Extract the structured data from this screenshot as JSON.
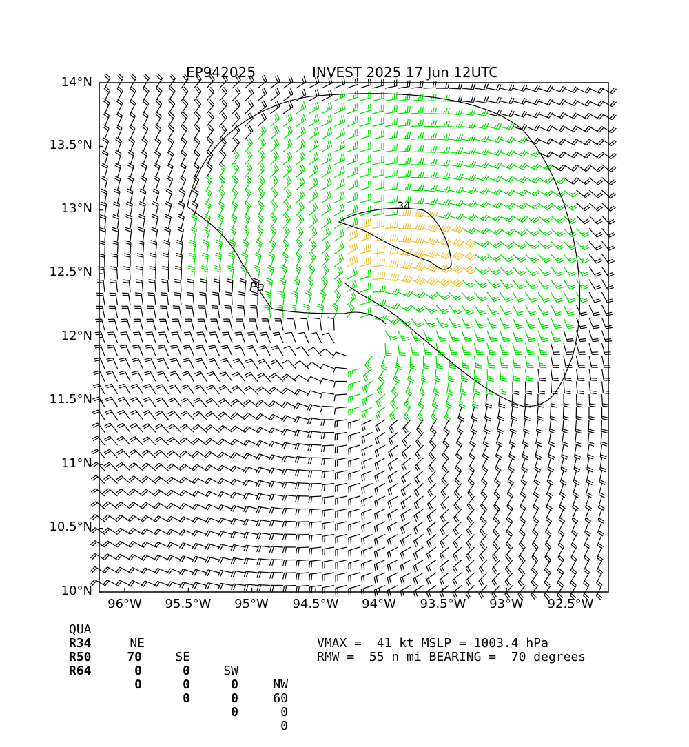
{
  "title": {
    "left": "EP942025",
    "right": "INVEST 2025 17 Jun 12UTC"
  },
  "map": {
    "lon_range": [
      -96.2,
      -92.2
    ],
    "lat_range": [
      10.0,
      14.0
    ],
    "lat_ticks": [
      "14°N",
      "13.5°N",
      "13°N",
      "12.5°N",
      "12°N",
      "11.5°N",
      "11°N",
      "10.5°N",
      "10°N"
    ],
    "lon_ticks": [
      "96°W",
      "95.5°W",
      "95°W",
      "94.5°W",
      "94°W",
      "93.5°W",
      "93°W",
      "92.5°W"
    ],
    "center": {
      "lon": -94.15,
      "lat": 12.0
    },
    "contour_labels": [
      "34",
      "Pa"
    ],
    "colors": {
      "below_34": "#000000",
      "r34": "#00e000",
      "r50": "#f0c030",
      "coast": "#000000"
    }
  },
  "wind_radii": {
    "header": [
      "QUA",
      "NE",
      "SE",
      "SW",
      "NW"
    ],
    "rows": [
      {
        "name": "R34",
        "values": [
          "70",
          "0",
          "0",
          "60"
        ]
      },
      {
        "name": "R50",
        "values": [
          "0",
          "0",
          "0",
          "0"
        ]
      },
      {
        "name": "R64",
        "values": [
          "0",
          "0",
          "0",
          "0"
        ]
      }
    ]
  },
  "stats": {
    "line1": "VMAX =  41 kt MSLP = 1003.4 hPa",
    "line2": "RMW =  55 n mi BEARING =  70 degrees"
  }
}
